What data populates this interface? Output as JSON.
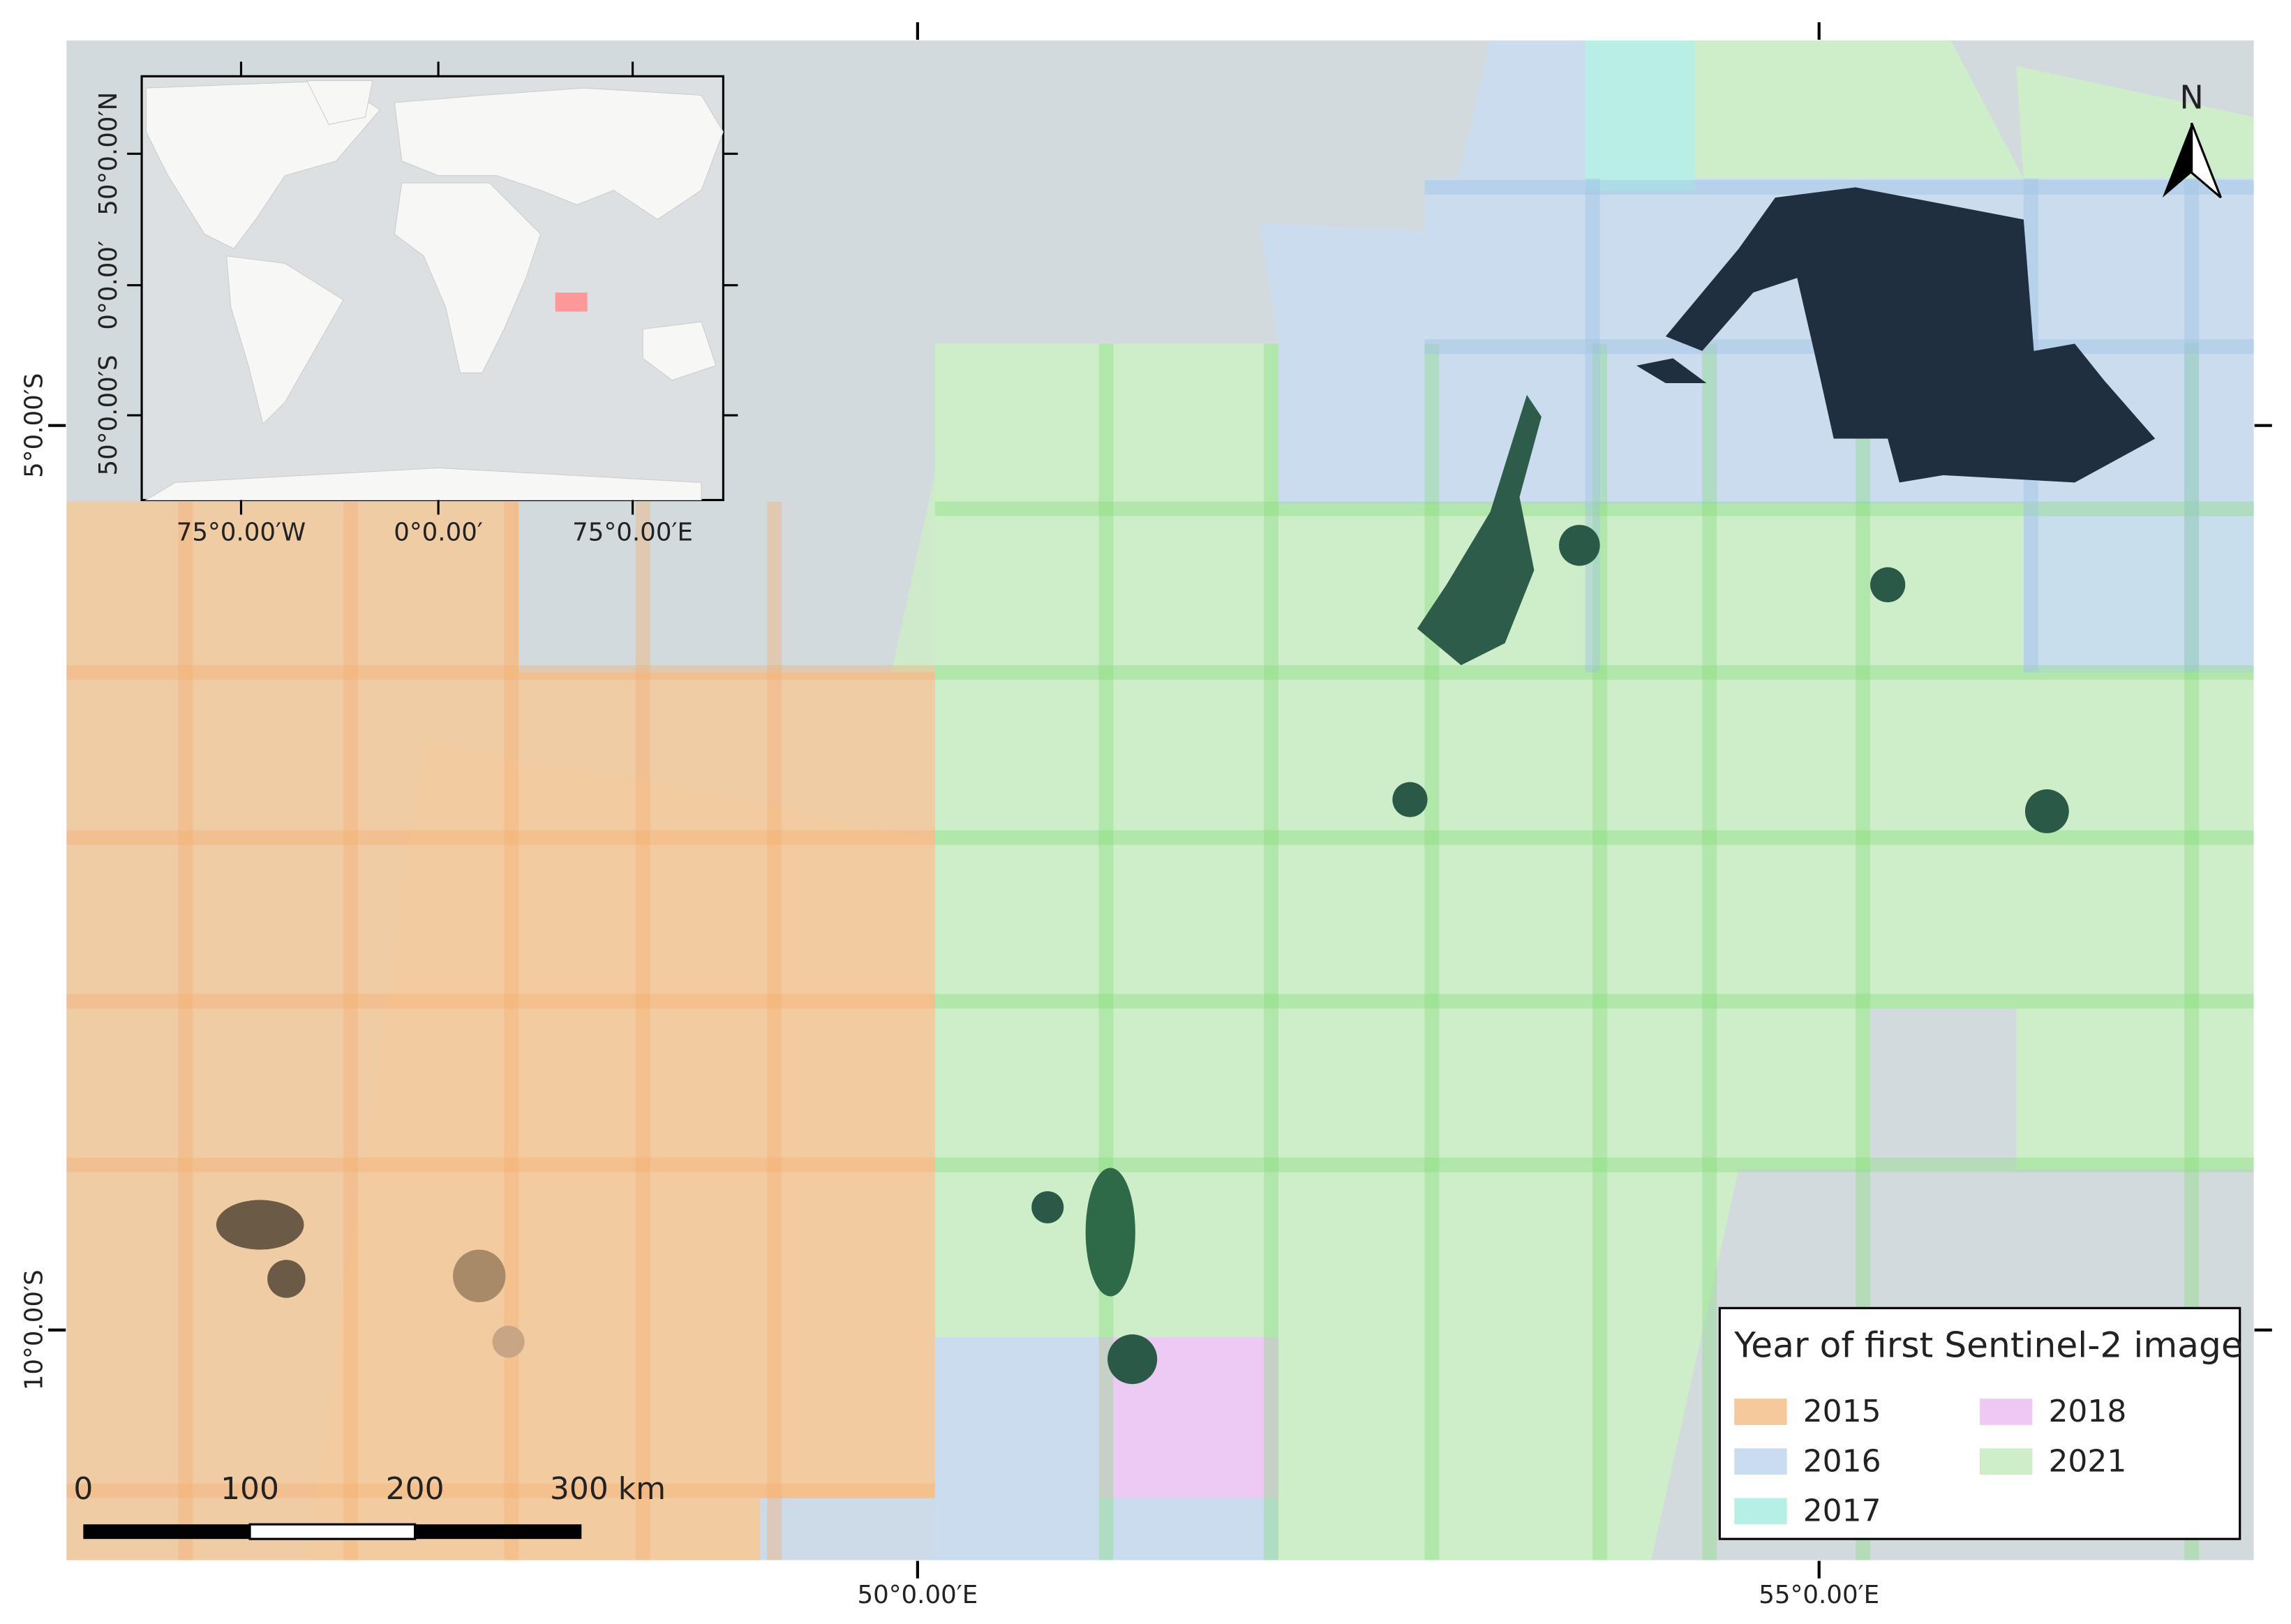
{
  "map": {
    "axis_labels": {
      "x": [
        "50°0.00′E",
        "55°0.00′E"
      ],
      "y": [
        "5°0.00′S",
        "10°0.00′S"
      ]
    }
  },
  "inset": {
    "x_labels": [
      "75°0.00′W",
      "0°0.00′",
      "75°0.00′E"
    ],
    "y_labels": [
      "50°0.00′N",
      "0°0.00′",
      "50°0.00′S"
    ]
  },
  "north_arrow": {
    "label": "N"
  },
  "scale_bar": {
    "labels": [
      "0",
      "100",
      "200",
      "300 km"
    ]
  },
  "legend": {
    "title": "Year of first Sentinel-2 image",
    "items": [
      {
        "label": "2015",
        "color": "#f5c99b"
      },
      {
        "label": "2018",
        "color": "#efc8f3"
      },
      {
        "label": "2016",
        "color": "#c9dcf0"
      },
      {
        "label": "2021",
        "color": "#cdeec6"
      },
      {
        "label": "2017",
        "color": "#b6f0e4"
      }
    ]
  }
}
